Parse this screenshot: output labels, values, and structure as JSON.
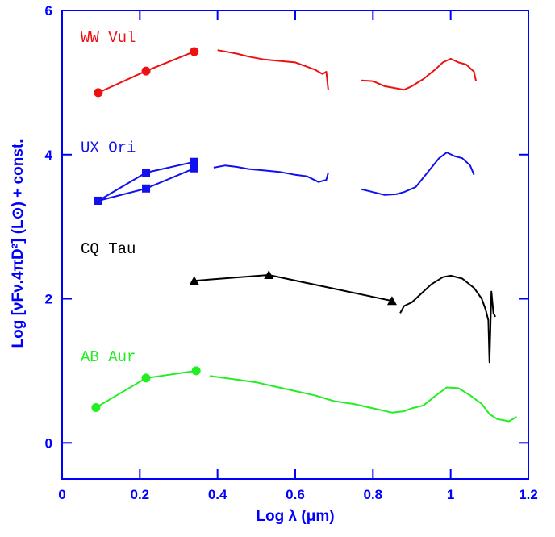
{
  "chart_data": {
    "type": "line",
    "xlabel": "Log λ  (μm)",
    "ylabel": "Log [νFν.4πD²]   (L⊙) + const.",
    "xlim": [
      0,
      1.2
    ],
    "ylim": [
      -0.5,
      6
    ],
    "xticks": [
      0,
      0.2,
      0.4,
      0.6,
      0.8,
      1,
      1.2
    ],
    "yticks": [
      0,
      2,
      4,
      6
    ],
    "axis_color": "#0000ff",
    "stars": [
      {
        "name": "WW Vul",
        "color": "#ee1111",
        "marker": "circle",
        "photometry": [
          {
            "x": [
              0.093,
              0.216,
              0.34
            ],
            "y": [
              4.86,
              5.16,
              5.43
            ]
          }
        ],
        "spectrum": {
          "x": [
            0.4,
            0.43,
            0.45,
            0.48,
            0.52,
            0.56,
            0.6,
            0.63,
            0.65,
            0.67,
            0.68,
            0.685,
            null,
            0.77,
            0.8,
            0.83,
            0.85,
            0.88,
            0.9,
            0.93,
            0.96,
            0.98,
            1.0,
            1.02,
            1.04,
            1.06,
            1.065
          ],
          "y": [
            5.45,
            5.42,
            5.4,
            5.36,
            5.32,
            5.3,
            5.28,
            5.22,
            5.18,
            5.12,
            5.15,
            4.9,
            null,
            5.03,
            5.02,
            4.95,
            4.93,
            4.9,
            4.95,
            5.05,
            5.18,
            5.28,
            5.33,
            5.28,
            5.25,
            5.15,
            5.02
          ]
        }
      },
      {
        "name": "UX Ori",
        "color": "#1111ee",
        "marker": "square",
        "photometry": [
          {
            "x": [
              0.093,
              0.216,
              0.34
            ],
            "y": [
              3.36,
              3.75,
              3.9
            ]
          },
          {
            "x": [
              0.093,
              0.216,
              0.34
            ],
            "y": [
              3.36,
              3.53,
              3.81
            ]
          }
        ],
        "spectrum": {
          "x": [
            0.39,
            0.42,
            0.45,
            0.48,
            0.52,
            0.56,
            0.6,
            0.63,
            0.66,
            0.68,
            0.685,
            null,
            0.77,
            0.8,
            0.83,
            0.86,
            0.88,
            0.91,
            0.94,
            0.97,
            0.99,
            1.01,
            1.03,
            1.05,
            1.06
          ],
          "y": [
            3.82,
            3.85,
            3.83,
            3.8,
            3.78,
            3.76,
            3.72,
            3.7,
            3.62,
            3.65,
            3.75,
            null,
            3.52,
            3.48,
            3.44,
            3.45,
            3.48,
            3.55,
            3.75,
            3.95,
            4.03,
            3.98,
            3.95,
            3.85,
            3.72
          ]
        }
      },
      {
        "name": "CQ Tau",
        "color": "#000000",
        "marker": "triangle",
        "photometry": [
          {
            "x": [
              0.34,
              0.532,
              0.849
            ],
            "y": [
              2.25,
              2.33,
              1.97
            ]
          }
        ],
        "spectrum": {
          "x": [
            0.87,
            0.88,
            0.9,
            0.92,
            0.95,
            0.98,
            1.0,
            1.03,
            1.06,
            1.08,
            1.09,
            1.097,
            1.1,
            1.105,
            1.11,
            1.115
          ],
          "y": [
            1.8,
            1.9,
            1.95,
            2.05,
            2.2,
            2.3,
            2.32,
            2.28,
            2.15,
            2.0,
            1.85,
            1.7,
            1.12,
            2.1,
            1.8,
            1.75
          ]
        }
      },
      {
        "name": "AB Aur",
        "color": "#22ee22",
        "marker": "circle",
        "photometry": [
          {
            "x": [
              0.087,
              0.216,
              0.345
            ],
            "y": [
              0.49,
              0.9,
              1.0
            ]
          }
        ],
        "spectrum": {
          "x": [
            0.38,
            0.42,
            0.46,
            0.5,
            0.55,
            0.6,
            0.65,
            0.7,
            0.75,
            0.8,
            0.85,
            0.88,
            0.9,
            0.93,
            0.96,
            0.99,
            1.02,
            1.05,
            1.08,
            1.1,
            1.12,
            1.15,
            1.17
          ],
          "y": [
            0.93,
            0.9,
            0.87,
            0.84,
            0.78,
            0.72,
            0.66,
            0.58,
            0.54,
            0.48,
            0.42,
            0.44,
            0.48,
            0.52,
            0.65,
            0.77,
            0.76,
            0.66,
            0.54,
            0.4,
            0.33,
            0.3,
            0.36
          ]
        }
      }
    ]
  }
}
